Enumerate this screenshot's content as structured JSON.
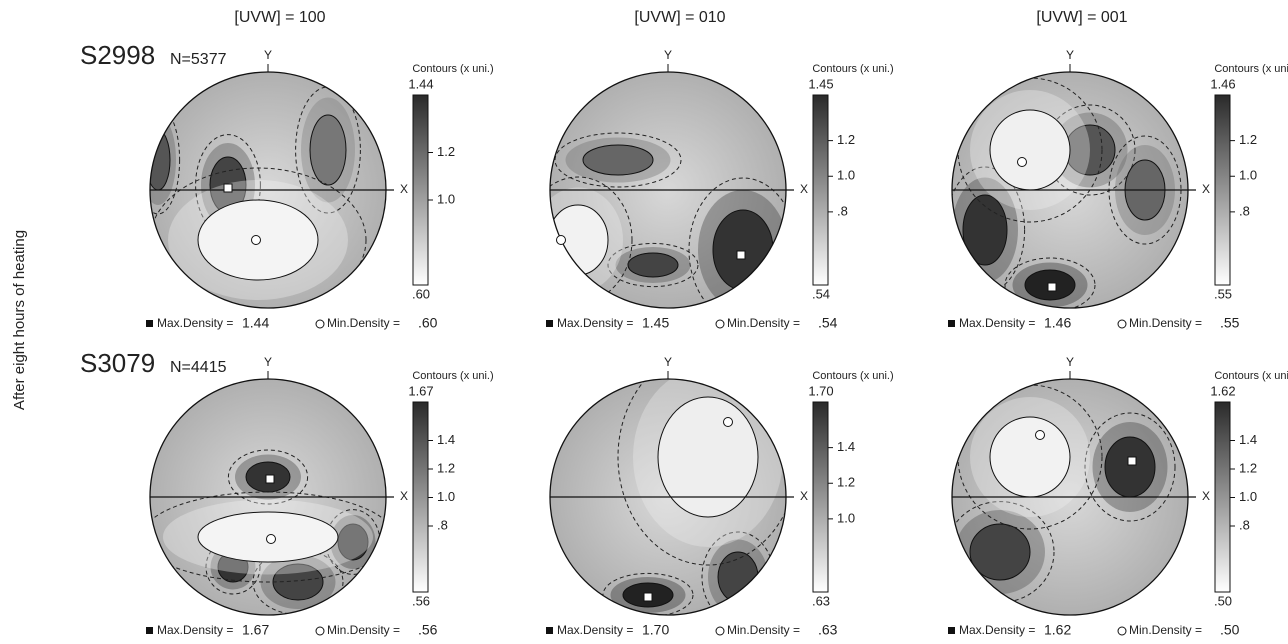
{
  "column_headers": [
    "[UVW] = 100",
    "[UVW] = 010",
    "[UVW] = 001"
  ],
  "side_label": "After eight hours of heating",
  "axis_labels": {
    "x": "X",
    "y": "Y"
  },
  "legend_text": {
    "contours": "Contours (x uni.)",
    "max": "Max.Density =",
    "min": "Min.Density ="
  },
  "rows": [
    {
      "sample": "S2998",
      "n": "N=5377",
      "panels": [
        {
          "scale_max": "1.44",
          "scale_ticks": [
            "1.2",
            "1.0"
          ],
          "scale_min": ".60",
          "max_density": "1.44",
          "min_density": ".60"
        },
        {
          "scale_max": "1.45",
          "scale_ticks": [
            "1.2",
            "1.0",
            ".8"
          ],
          "scale_min": ".54",
          "max_density": "1.45",
          "min_density": ".54"
        },
        {
          "scale_max": "1.46",
          "scale_ticks": [
            "1.2",
            "1.0",
            ".8"
          ],
          "scale_min": ".55",
          "max_density": "1.46",
          "min_density": ".55"
        }
      ]
    },
    {
      "sample": "S3079",
      "n": "N=4415",
      "panels": [
        {
          "scale_max": "1.67",
          "scale_ticks": [
            "1.4",
            "1.2",
            "1.0",
            ".8"
          ],
          "scale_min": ".56",
          "max_density": "1.67",
          "min_density": ".56"
        },
        {
          "scale_max": "1.70",
          "scale_ticks": [
            "1.4",
            "1.2",
            "1.0"
          ],
          "scale_min": ".63",
          "max_density": "1.70",
          "min_density": ".63"
        },
        {
          "scale_max": "1.62",
          "scale_ticks": [
            "1.4",
            "1.2",
            "1.0",
            ".8"
          ],
          "scale_min": ".50",
          "max_density": "1.62",
          "min_density": ".50"
        }
      ]
    }
  ]
}
